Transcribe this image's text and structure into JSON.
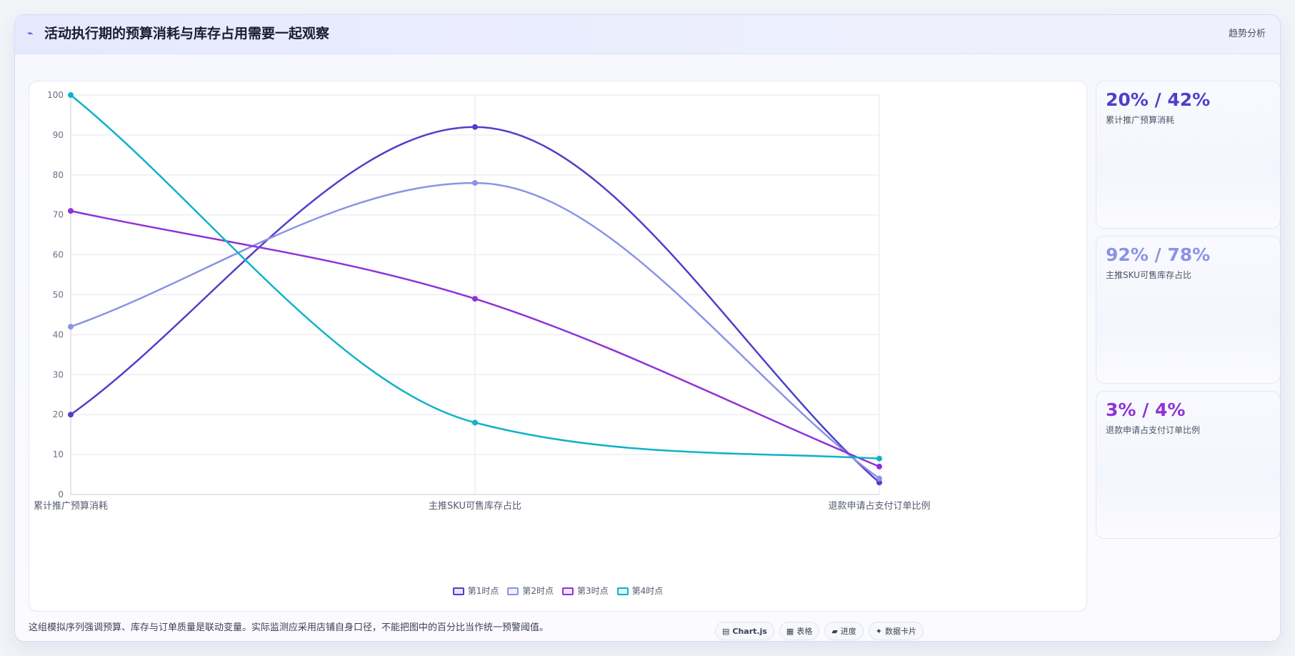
{
  "header": {
    "icon": "trend-line-icon",
    "title": "活动执行期的预算消耗与库存占用需要一起观察",
    "tag": "趋势分析"
  },
  "chart_data": {
    "type": "line",
    "categories": [
      "累计推广预算消耗",
      "主推SKU可售库存占比",
      "退款申请占支付订单比例"
    ],
    "series": [
      {
        "name": "第1时点",
        "values": [
          20,
          92,
          3
        ],
        "color": "#4f3fc9"
      },
      {
        "name": "第2时点",
        "values": [
          42,
          78,
          4
        ],
        "color": "#8a93e6"
      },
      {
        "name": "第3时点",
        "values": [
          71,
          49,
          7
        ],
        "color": "#9032d6"
      },
      {
        "name": "第4时点",
        "values": [
          100,
          18,
          9
        ],
        "color": "#10b2c8"
      }
    ],
    "ylim": [
      0,
      100
    ],
    "yticks": [
      0,
      10,
      20,
      30,
      40,
      50,
      60,
      70,
      80,
      90,
      100
    ],
    "grid": true,
    "legend_position": "bottom",
    "xlabel": "",
    "ylabel": ""
  },
  "stats": [
    {
      "value": "20% / 42%",
      "label": "累计推广预算消耗",
      "color": "#4f3fc9"
    },
    {
      "value": "92% / 78%",
      "label": "主推SKU可售库存占比",
      "color": "#8a93e6"
    },
    {
      "value": "3% / 4%",
      "label": "退款申请占支付订单比例",
      "color": "#9032d6"
    }
  ],
  "footer": {
    "note": "这组模拟序列强调预算、库存与订单质量是联动变量。实际监测应采用店铺自身口径，不能把图中的百分比当作统一预警阈值。",
    "tools": [
      {
        "icon": "chart-icon",
        "glyph": "▤",
        "label": "Chart.js"
      },
      {
        "icon": "table-icon",
        "glyph": "▦",
        "label": "表格"
      },
      {
        "icon": "progress-icon",
        "glyph": "▰",
        "label": "进度"
      },
      {
        "icon": "sparkle-icon",
        "glyph": "✦",
        "label": "数据卡片"
      }
    ]
  }
}
